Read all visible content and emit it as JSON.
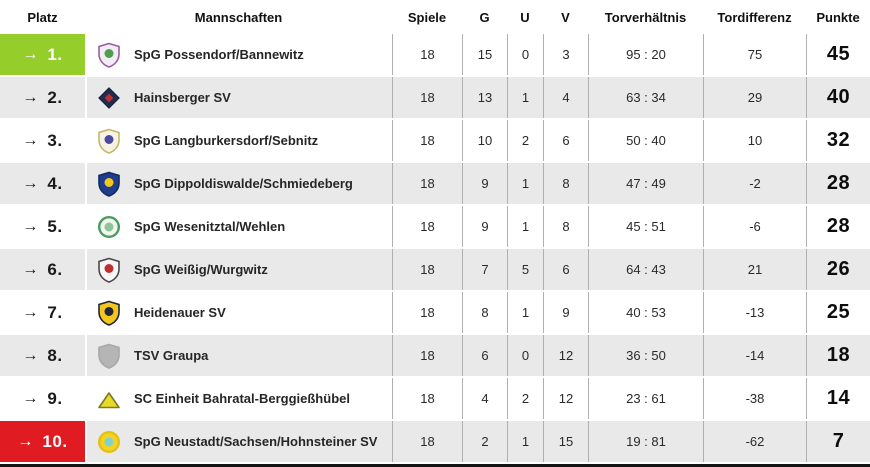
{
  "table": {
    "headers": {
      "platz": "Platz",
      "mannschaften": "Mannschaften",
      "spiele": "Spiele",
      "g": "G",
      "u": "U",
      "v": "V",
      "torverhaeltnis": "Torverhältnis",
      "tordifferenz": "Tordifferenz",
      "punkte": "Punkte"
    },
    "rows": [
      {
        "rank": "1.",
        "trend_arrow": "→",
        "team": "SpG Possendorf/Bannewitz",
        "spiele": "18",
        "g": "15",
        "u": "0",
        "v": "3",
        "torverhaeltnis": "95 : 20",
        "tordifferenz": "75",
        "punkte": "45",
        "highlight": "promotion",
        "crest": {
          "name": "possendorf-bannewitz-crest",
          "shape": "shield",
          "fill": "#f2ecf4",
          "border": "#9a5fa0",
          "accent": "#4f9e4f"
        }
      },
      {
        "rank": "2.",
        "trend_arrow": "→",
        "team": "Hainsberger SV",
        "spiele": "18",
        "g": "13",
        "u": "1",
        "v": "4",
        "torverhaeltnis": "63 : 34",
        "tordifferenz": "29",
        "punkte": "40",
        "highlight": "none",
        "crest": {
          "name": "hainsberger-sv-crest",
          "shape": "diamond",
          "fill": "#232c4e",
          "border": "#1a2240",
          "accent": "#c03030"
        }
      },
      {
        "rank": "3.",
        "trend_arrow": "→",
        "team": "SpG Langburkersdorf/Sebnitz",
        "spiele": "18",
        "g": "10",
        "u": "2",
        "v": "6",
        "torverhaeltnis": "50 : 40",
        "tordifferenz": "10",
        "punkte": "32",
        "highlight": "none",
        "crest": {
          "name": "langburkersdorf-sebnitz-crest",
          "shape": "shield",
          "fill": "#f7f3e4",
          "border": "#c9b567",
          "accent": "#4a4aa0"
        }
      },
      {
        "rank": "4.",
        "trend_arrow": "→",
        "team": "SpG Dippoldiswalde/Schmiedeberg",
        "spiele": "18",
        "g": "9",
        "u": "1",
        "v": "8",
        "torverhaeltnis": "47 : 49",
        "tordifferenz": "-2",
        "punkte": "28",
        "highlight": "none",
        "crest": {
          "name": "dippoldiswalde-schmiedeberg-crest",
          "shape": "shield",
          "fill": "#1f3d8c",
          "border": "#142a66",
          "accent": "#f2c71d"
        }
      },
      {
        "rank": "5.",
        "trend_arrow": "→",
        "team": "SpG Wesenitztal/Wehlen",
        "spiele": "18",
        "g": "9",
        "u": "1",
        "v": "8",
        "torverhaeltnis": "45 : 51",
        "tordifferenz": "-6",
        "punkte": "28",
        "highlight": "none",
        "crest": {
          "name": "wesenitztal-wehlen-crest",
          "shape": "circle",
          "fill": "#eef6ee",
          "border": "#4d9a5f",
          "accent": "#8fc49a"
        }
      },
      {
        "rank": "6.",
        "trend_arrow": "→",
        "team": "SpG Weißig/Wurgwitz",
        "spiele": "18",
        "g": "7",
        "u": "5",
        "v": "6",
        "torverhaeltnis": "64 : 43",
        "tordifferenz": "21",
        "punkte": "26",
        "highlight": "none",
        "crest": {
          "name": "weissig-wurgwitz-crest",
          "shape": "shield",
          "fill": "#f7f7f7",
          "border": "#4a4a4a",
          "accent": "#c03030"
        }
      },
      {
        "rank": "7.",
        "trend_arrow": "→",
        "team": "Heidenauer SV",
        "spiele": "18",
        "g": "8",
        "u": "1",
        "v": "9",
        "torverhaeltnis": "40 : 53",
        "tordifferenz": "-13",
        "punkte": "25",
        "highlight": "none",
        "crest": {
          "name": "heidenauer-sv-crest",
          "shape": "shield",
          "fill": "#f2c71d",
          "border": "#23233a",
          "accent": "#23233a"
        }
      },
      {
        "rank": "8.",
        "trend_arrow": "→",
        "team": "TSV Graupa",
        "spiele": "18",
        "g": "6",
        "u": "0",
        "v": "12",
        "torverhaeltnis": "36 : 50",
        "tordifferenz": "-14",
        "punkte": "18",
        "highlight": "none",
        "crest": {
          "name": "tsv-graupa-crest",
          "shape": "shield",
          "fill": "#b5b5b5",
          "border": "#a8a8a8",
          "accent": "#b5b5b5"
        }
      },
      {
        "rank": "9.",
        "trend_arrow": "→",
        "team": "SC Einheit Bahratal-Berggießhübel",
        "spiele": "18",
        "g": "4",
        "u": "2",
        "v": "12",
        "torverhaeltnis": "23 : 61",
        "tordifferenz": "-38",
        "punkte": "14",
        "highlight": "none",
        "crest": {
          "name": "einheit-bahratal-berggiesshuebel-crest",
          "shape": "triangle",
          "fill": "#e8da25",
          "border": "#7a7a2a",
          "accent": "#e8da25"
        }
      },
      {
        "rank": "10.",
        "trend_arrow": "→",
        "team": "SpG Neustadt/Sachsen/Hohnsteiner SV",
        "spiele": "18",
        "g": "2",
        "u": "1",
        "v": "15",
        "torverhaeltnis": "19 : 81",
        "tordifferenz": "-62",
        "punkte": "7",
        "highlight": "relegation",
        "crest": {
          "name": "neustadt-sachsen-hohnstein-crest",
          "shape": "circle",
          "fill": "#f2d321",
          "border": "#e3c114",
          "accent": "#7fd0cf"
        }
      }
    ]
  },
  "colors": {
    "promotion_green": "#95ce2b",
    "relegation_red": "#e11b22",
    "row_alt_gray": "#e9e9e9",
    "column_separator": "#b0b0b0",
    "bottom_border": "#141414"
  }
}
